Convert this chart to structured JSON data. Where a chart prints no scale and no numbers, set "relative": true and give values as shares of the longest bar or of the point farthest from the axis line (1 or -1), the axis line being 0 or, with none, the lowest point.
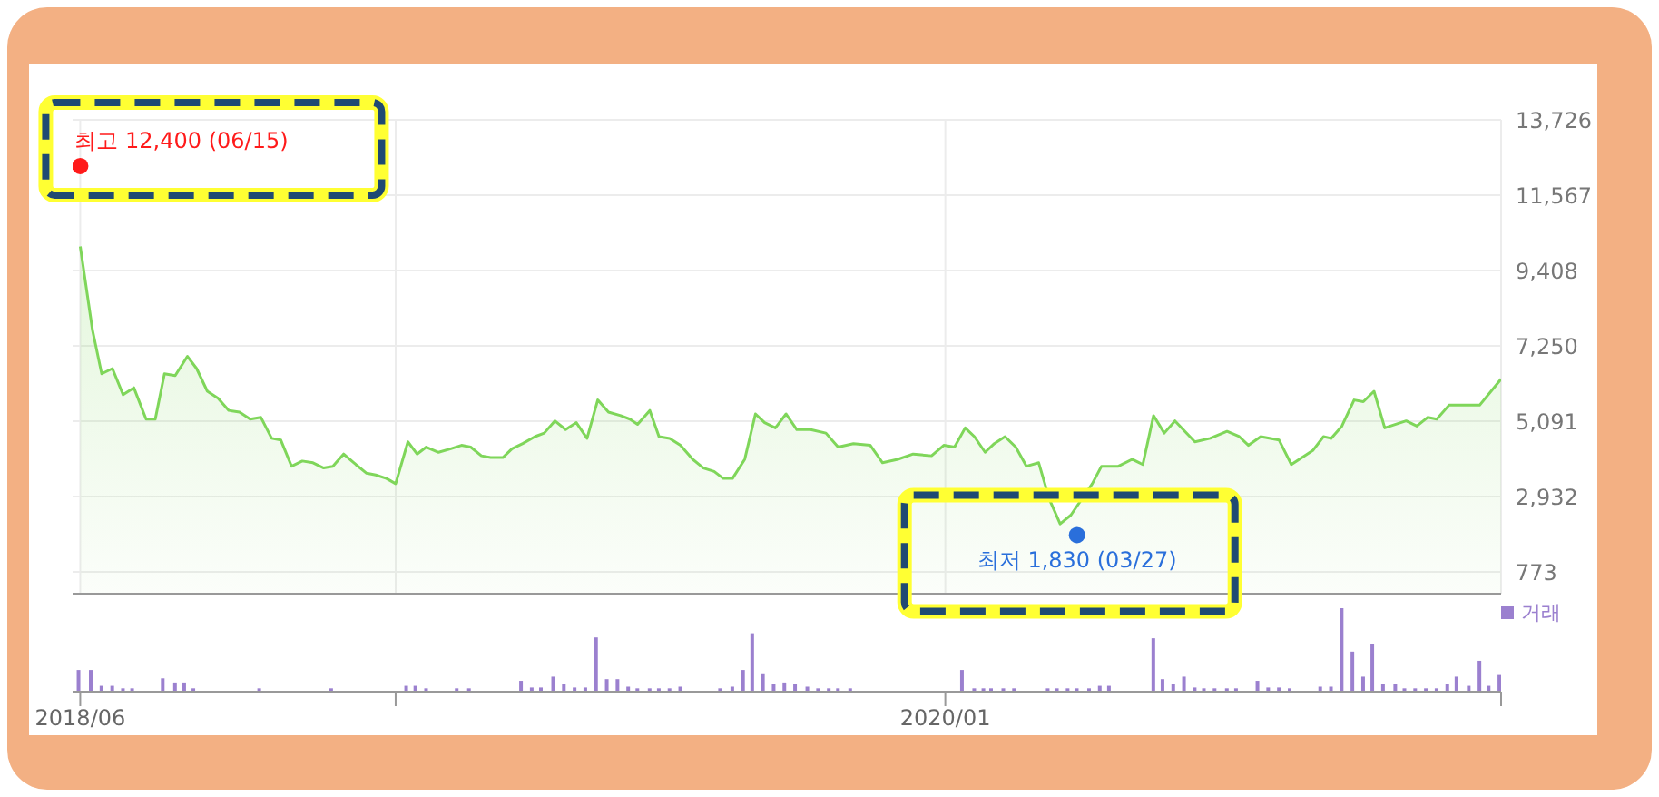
{
  "chart_data": [
    {
      "type": "area",
      "xlim": [
        "2018-06-10",
        "2020-12-29"
      ],
      "ylim": [
        150,
        13726
      ],
      "xticks": [
        {
          "value": "2018-06-15",
          "label": null
        },
        {
          "value": "2019-01-07",
          "label": null
        },
        {
          "value": "2020-01-01",
          "label": null
        },
        {
          "value": "2020-12-29",
          "label": null
        }
      ],
      "yticks": [
        773,
        {
          "value": 2932,
          "label": "2,932"
        },
        {
          "value": 5091,
          "label": "5,091"
        },
        {
          "value": 7250,
          "label": "7,250"
        },
        {
          "value": 9408,
          "label": "9,408"
        },
        {
          "value": 11567,
          "label": "11,567"
        },
        {
          "value": 13726,
          "label": "13,726"
        }
      ],
      "grid": true,
      "tick_labels": "y",
      "annotations": [
        {
          "text": "최고 12,400 (06/15)",
          "x": "2018-06-15",
          "y": 12400
        },
        {
          "text": "최저 1,830 (03/27)",
          "x": "2020-03-27",
          "y": 1830
        }
      ],
      "series": [
        {
          "color": "#7fd65a",
          "x": [
            "2018-06-15",
            "2018-06-23",
            "2018-06-29",
            "2018-07-06",
            "2018-07-13",
            "2018-07-20",
            "2018-07-28",
            "2018-08-03",
            "2018-08-09",
            "2018-08-16",
            "2018-08-24",
            "2018-08-30",
            "2018-09-06",
            "2018-09-13",
            "2018-09-20",
            "2018-09-27",
            "2018-10-04",
            "2018-10-11",
            "2018-10-18",
            "2018-10-24",
            "2018-10-31",
            "2018-11-07",
            "2018-11-14",
            "2018-11-21",
            "2018-11-27",
            "2018-12-04",
            "2018-12-12",
            "2018-12-19",
            "2018-12-25",
            "2019-01-01",
            "2019-01-07",
            "2019-01-15",
            "2019-01-21",
            "2019-01-27",
            "2019-02-04",
            "2019-02-12",
            "2019-02-19",
            "2019-02-25",
            "2019-03-04",
            "2019-03-10",
            "2019-03-18",
            "2019-03-24",
            "2019-03-31",
            "2019-04-08",
            "2019-04-14",
            "2019-04-21",
            "2019-04-28",
            "2019-05-05",
            "2019-05-12",
            "2019-05-19",
            "2019-05-26",
            "2019-06-03",
            "2019-06-09",
            "2019-06-14",
            "2019-06-22",
            "2019-06-28",
            "2019-07-05",
            "2019-07-12",
            "2019-07-20",
            "2019-07-27",
            "2019-08-03",
            "2019-08-09",
            "2019-08-15",
            "2019-08-23",
            "2019-08-30",
            "2019-09-05",
            "2019-09-12",
            "2019-09-19",
            "2019-09-26",
            "2019-10-05",
            "2019-10-15",
            "2019-10-23",
            "2019-11-02",
            "2019-11-13",
            "2019-11-21",
            "2019-12-01",
            "2019-12-11",
            "2019-12-23",
            "2019-12-31",
            "2020-01-07",
            "2020-01-14",
            "2020-01-20",
            "2020-01-27",
            "2020-02-02",
            "2020-02-09",
            "2020-02-16",
            "2020-02-23",
            "2020-03-02",
            "2020-03-09",
            "2020-03-16",
            "2020-03-23",
            "2020-04-06",
            "2020-04-12",
            "2020-04-23",
            "2020-05-02",
            "2020-05-09",
            "2020-05-16",
            "2020-05-23",
            "2020-05-30",
            "2020-06-12",
            "2020-06-22",
            "2020-07-03",
            "2020-07-11",
            "2020-07-17",
            "2020-07-25",
            "2020-08-06",
            "2020-08-14",
            "2020-08-28",
            "2020-09-04",
            "2020-09-09",
            "2020-09-16",
            "2020-09-24",
            "2020-09-30",
            "2020-10-07",
            "2020-10-14",
            "2020-10-28",
            "2020-11-04",
            "2020-11-11",
            "2020-11-17",
            "2020-11-25",
            "2020-12-04",
            "2020-12-15",
            "2020-12-29"
          ],
          "type": "area",
          "values": [
            10100,
            7700,
            6450,
            6600,
            5850,
            6050,
            5150,
            5150,
            6450,
            6400,
            6950,
            6600,
            5950,
            5750,
            5400,
            5350,
            5150,
            5200,
            4600,
            4550,
            3800,
            3950,
            3900,
            3750,
            3800,
            4150,
            3850,
            3600,
            3550,
            3450,
            3300,
            4500,
            4150,
            4350,
            4200,
            4300,
            4400,
            4350,
            4100,
            4050,
            4050,
            4300,
            4450,
            4650,
            4750,
            5100,
            4850,
            5050,
            4600,
            5700,
            5350,
            5250,
            5150,
            5000,
            5400,
            4650,
            4600,
            4400,
            4000,
            3750,
            3650,
            3450,
            3450,
            4000,
            5300,
            5050,
            4900,
            5300,
            4850,
            4850,
            4750,
            4350,
            4450,
            4400,
            3900,
            4000,
            4150,
            4100,
            4400,
            4350,
            4900,
            4650,
            4200,
            4450,
            4650,
            4350,
            3800,
            3900,
            2850,
            2150,
            2400,
            3300,
            3800,
            3800,
            4000,
            3850,
            5250,
            4750,
            5100,
            4500,
            4600,
            4800,
            4650,
            4400,
            4650,
            4550,
            3850,
            4250,
            4650,
            4600,
            4950,
            5700,
            5650,
            5950,
            4900,
            5100,
            4950,
            5200,
            5150,
            5550,
            5550,
            5550,
            6300
          ]
        },
        {
          "type": "scatter",
          "x": [
            "2018-06-15",
            "2020-03-27"
          ],
          "values": [
            12400,
            1830
          ],
          "colors": [
            "#ff1a1a",
            "#2a6fdb"
          ]
        }
      ]
    },
    {
      "type": "bar",
      "relative": true,
      "legend": "top right",
      "xlim": [
        "2018-06-10",
        "2020-12-29"
      ],
      "xticks": [
        {
          "value": "2018-06-15",
          "label": "2018/06"
        },
        {
          "value": "2019-01-07",
          "label": null
        },
        {
          "value": "2020-01-01",
          "label": "2020/01"
        },
        {
          "value": "2020-12-29",
          "label": null
        }
      ],
      "series": [
        {
          "name": "거래",
          "color": "#9b80cf",
          "x": [
            "2018-06-14",
            "2018-06-22",
            "2018-06-29",
            "2018-07-06",
            "2018-07-13",
            "2018-07-19",
            "2018-08-08",
            "2018-08-16",
            "2018-08-22",
            "2018-08-28",
            "2018-10-10",
            "2018-11-26",
            "2019-01-14",
            "2019-01-20",
            "2019-01-27",
            "2019-02-16",
            "2019-02-24",
            "2019-03-30",
            "2019-04-06",
            "2019-04-12",
            "2019-04-20",
            "2019-04-27",
            "2019-05-04",
            "2019-05-11",
            "2019-05-18",
            "2019-05-25",
            "2019-06-01",
            "2019-06-08",
            "2019-06-14",
            "2019-06-22",
            "2019-06-28",
            "2019-07-05",
            "2019-07-12",
            "2019-08-07",
            "2019-08-15",
            "2019-08-22",
            "2019-08-28",
            "2019-09-04",
            "2019-09-11",
            "2019-09-18",
            "2019-09-25",
            "2019-10-03",
            "2019-10-10",
            "2019-10-17",
            "2019-10-23",
            "2019-10-31",
            "2020-01-12",
            "2020-01-20",
            "2020-01-26",
            "2020-01-31",
            "2020-02-08",
            "2020-02-15",
            "2020-03-08",
            "2020-03-14",
            "2020-03-21",
            "2020-03-27",
            "2020-04-04",
            "2020-04-11",
            "2020-04-17",
            "2020-05-16",
            "2020-05-22",
            "2020-05-29",
            "2020-06-05",
            "2020-06-12",
            "2020-06-18",
            "2020-06-25",
            "2020-07-03",
            "2020-07-09",
            "2020-07-23",
            "2020-07-30",
            "2020-08-06",
            "2020-08-13",
            "2020-09-02",
            "2020-09-09",
            "2020-09-16",
            "2020-09-23",
            "2020-09-30",
            "2020-10-06",
            "2020-10-13",
            "2020-10-21",
            "2020-10-27",
            "2020-11-03",
            "2020-11-10",
            "2020-11-17",
            "2020-11-24",
            "2020-11-30",
            "2020-12-08",
            "2020-12-15",
            "2020-12-21",
            "2020-12-28"
          ],
          "values": [
            0.26,
            0.26,
            0.07,
            0.07,
            0.04,
            0.04,
            0.16,
            0.11,
            0.11,
            0.04,
            0.04,
            0.04,
            0.07,
            0.07,
            0.04,
            0.04,
            0.04,
            0.13,
            0.05,
            0.05,
            0.18,
            0.09,
            0.05,
            0.05,
            0.65,
            0.15,
            0.15,
            0.06,
            0.04,
            0.04,
            0.04,
            0.04,
            0.06,
            0.04,
            0.06,
            0.26,
            0.7,
            0.22,
            0.09,
            0.11,
            0.09,
            0.06,
            0.04,
            0.04,
            0.04,
            0.04,
            0.26,
            0.04,
            0.04,
            0.04,
            0.04,
            0.04,
            0.04,
            0.04,
            0.04,
            0.04,
            0.04,
            0.07,
            0.07,
            0.64,
            0.15,
            0.09,
            0.18,
            0.05,
            0.04,
            0.04,
            0.04,
            0.04,
            0.13,
            0.05,
            0.05,
            0.04,
            0.06,
            0.06,
            1,
            0.48,
            0.18,
            0.57,
            0.09,
            0.09,
            0.04,
            0.04,
            0.04,
            0.04,
            0.09,
            0.18,
            0.07,
            0.37,
            0.07,
            0.2
          ]
        }
      ]
    }
  ]
}
